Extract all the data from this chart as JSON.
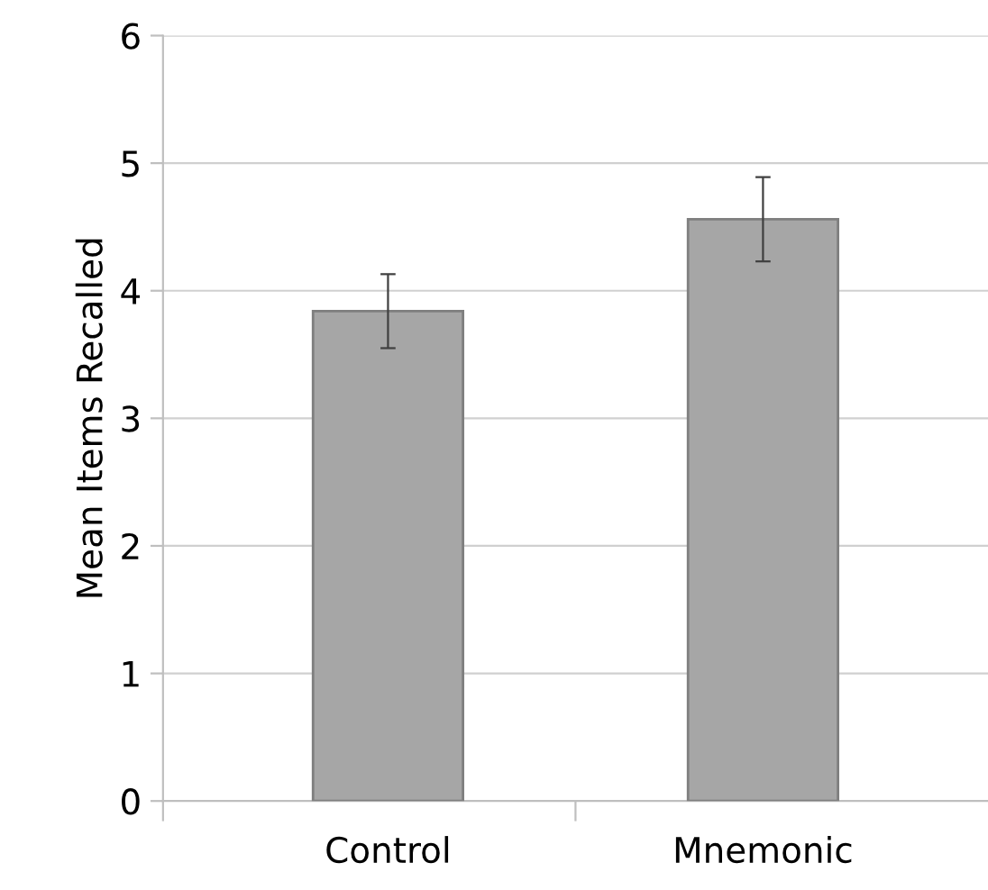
{
  "chart_data": {
    "type": "bar",
    "ylabel": "Mean Items Recalled",
    "categories": [
      "Control",
      "Mnemonic"
    ],
    "values": [
      3.84,
      4.56
    ],
    "errors": [
      0.29,
      0.33
    ],
    "color": "#a6a6a6",
    "ylim": [
      0,
      6
    ],
    "yticks": [
      0,
      1,
      2,
      3,
      4,
      5,
      6
    ],
    "grid": "y",
    "legend": false
  }
}
